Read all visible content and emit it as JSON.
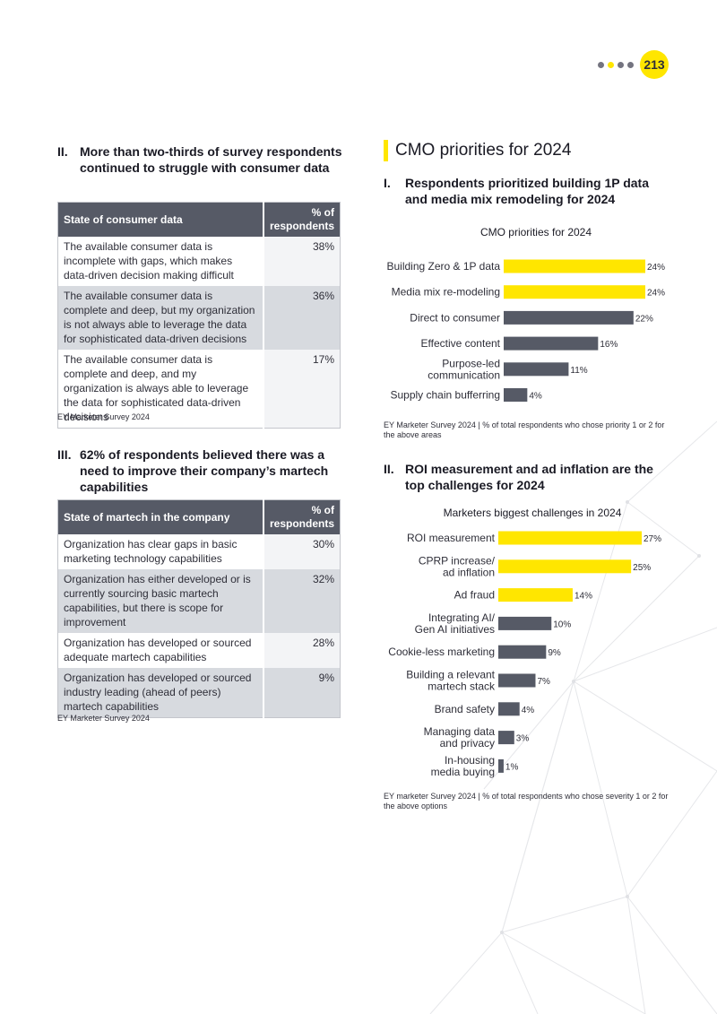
{
  "header": {
    "page_number": "213",
    "dots": [
      "dot",
      "dot-active",
      "dot",
      "dot"
    ]
  },
  "left": {
    "section2": {
      "num": "II.",
      "title": "More than two-thirds of survey respondents continued to struggle with consumer data"
    },
    "table1": {
      "col1": "State of consumer data",
      "col2": "% of respondents",
      "rows": [
        {
          "label": "The available consumer data is incomplete with gaps, which makes data-driven decision making difficult",
          "value": "38%"
        },
        {
          "label": "The available consumer data is complete and deep, but my organization is not always able to leverage the data for sophisticated data-driven decisions",
          "value": "36%"
        },
        {
          "label": "The available consumer data is complete and deep, and my organization is always able to leverage the data for sophisticated data-driven decisions",
          "value": "17%"
        }
      ],
      "source": "EY Marketer Survey 2024"
    },
    "section3": {
      "num": "III.",
      "title": "62% of respondents believed there was a need to improve their company’s martech capabilities"
    },
    "table2": {
      "col1": "State of martech in the company",
      "col2": "% of respondents",
      "rows": [
        {
          "label": "Organization has clear gaps in basic marketing technology capabilities",
          "value": "30%"
        },
        {
          "label": "Organization has either developed or is currently sourcing basic martech capabilities, but there is scope for improvement",
          "value": "32%"
        },
        {
          "label": "Organization has developed or sourced adequate martech capabilities",
          "value": "28%"
        },
        {
          "label": "Organization has developed or sourced industry leading (ahead of peers) martech capabilities",
          "value": "9%"
        }
      ],
      "source": "EY Marketer Survey 2024"
    }
  },
  "right": {
    "main_title": "CMO priorities for 2024",
    "section1": {
      "num": "I.",
      "title": "Respondents prioritized building 1P data and media mix remodeling for 2024"
    },
    "source1": "EY Marketer Survey 2024 | % of total respondents who chose priority 1 or 2 for the above areas",
    "section2": {
      "num": "II.",
      "title": "ROI measurement and ad inflation are the top challenges for 2024"
    },
    "source2": "EY marketer Survey 2024 | % of total respondents who chose severity 1 or 2 for the above options"
  },
  "colors": {
    "accent": "#ffe600",
    "bar_dark": "#565a66",
    "text": "#2e2e38"
  },
  "chart_data": [
    {
      "type": "bar",
      "orientation": "horizontal",
      "title": "CMO priorities for 2024",
      "categories": [
        "Building Zero & 1P data",
        "Media mix re-modeling",
        "Direct to consumer",
        "Effective content",
        "Purpose-led communication",
        "Supply chain bufferring"
      ],
      "category_lines": [
        [
          "Building Zero & 1P data"
        ],
        [
          "Media mix re-modeling"
        ],
        [
          "Direct to consumer"
        ],
        [
          "Effective content"
        ],
        [
          "Purpose-led",
          "communication"
        ],
        [
          "Supply chain bufferring"
        ]
      ],
      "values": [
        24,
        24,
        22,
        16,
        11,
        4
      ],
      "value_labels": [
        "24%",
        "24%",
        "22%",
        "16%",
        "11%",
        "4%"
      ],
      "highlight": [
        true,
        true,
        false,
        false,
        false,
        false
      ],
      "xlim": [
        0,
        24
      ],
      "unit": "%"
    },
    {
      "type": "bar",
      "orientation": "horizontal",
      "title": "Marketers biggest challenges in 2024",
      "categories": [
        "ROI measurement",
        "CPRP increase/ ad inflation",
        "Ad fraud",
        "Integrating AI/ Gen AI initiatives",
        "Cookie-less marketing",
        "Building a relevant martech stack",
        "Brand safety",
        "Managing data and privacy",
        "In-housing media buying"
      ],
      "category_lines": [
        [
          "ROI measurement"
        ],
        [
          "CPRP increase/",
          "ad inflation"
        ],
        [
          "Ad fraud"
        ],
        [
          "Integrating AI/",
          "Gen AI initiatives"
        ],
        [
          "Cookie-less marketing"
        ],
        [
          "Building a relevant",
          "martech stack"
        ],
        [
          "Brand safety"
        ],
        [
          "Managing data",
          "and privacy"
        ],
        [
          "In-housing",
          "media buying"
        ]
      ],
      "values": [
        27,
        25,
        14,
        10,
        9,
        7,
        4,
        3,
        1
      ],
      "value_labels": [
        "27%",
        "25%",
        "14%",
        "10%",
        "9%",
        "7%",
        "4%",
        "3%",
        "1%"
      ],
      "highlight": [
        true,
        true,
        true,
        false,
        false,
        false,
        false,
        false,
        false
      ],
      "xlim": [
        0,
        27
      ],
      "unit": "%"
    }
  ]
}
